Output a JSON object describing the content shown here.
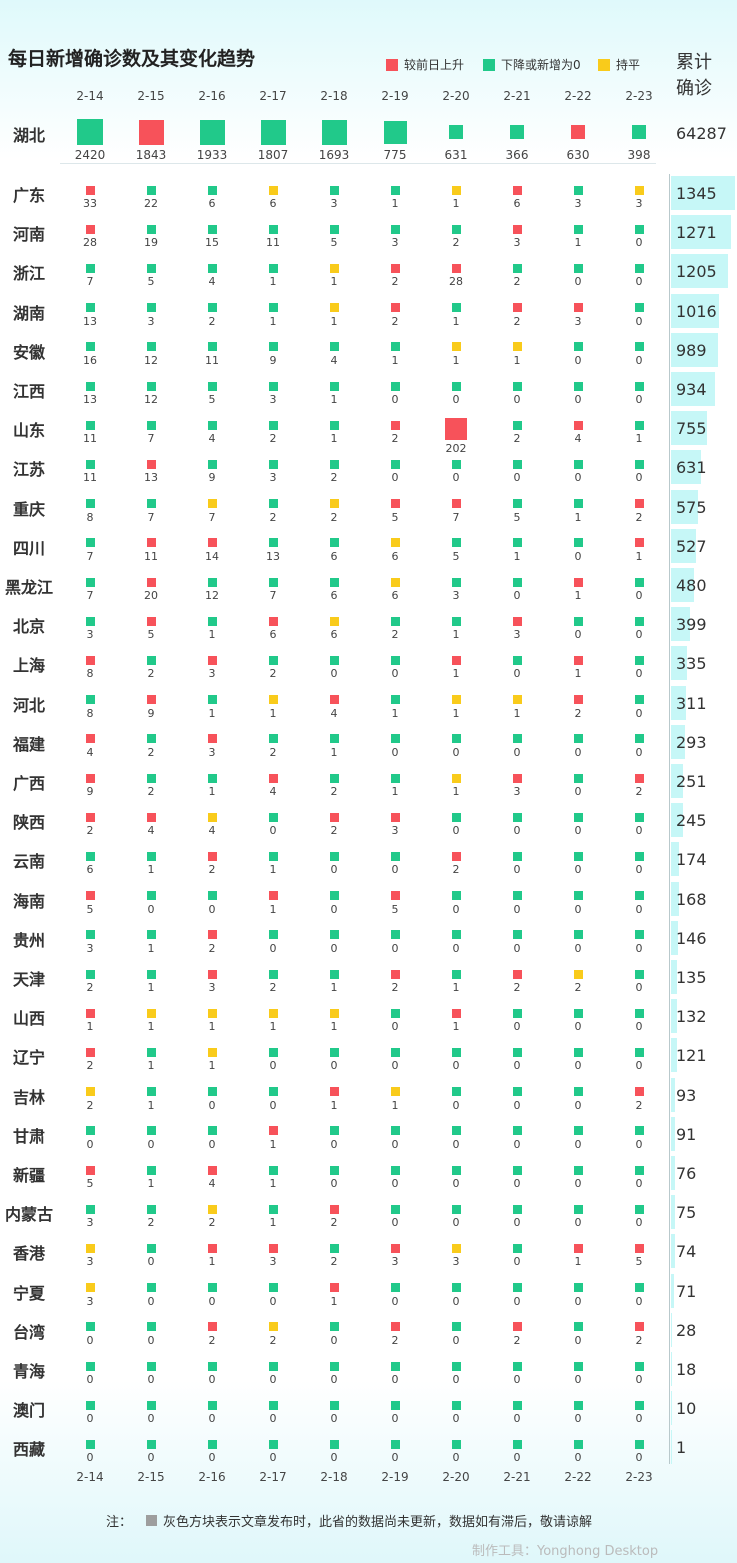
{
  "title": "每日新增确诊数及其变化趋势",
  "legend": [
    {
      "label": "较前日上升",
      "color": "#f7525a"
    },
    {
      "label": "下降或新增为0",
      "color": "#21c98a"
    },
    {
      "label": "持平",
      "color": "#f9cb1b"
    }
  ],
  "total_header": [
    "累计",
    "确诊"
  ],
  "note": {
    "prefix": "注：",
    "text": "灰色方块表示文章发布时，此省的数据尚未更新，数据如有滞后，敬请谅解"
  },
  "tool": "制作工具：Yonghong Desktop",
  "chart_data": {
    "type": "table",
    "dates": [
      "2-14",
      "2-15",
      "2-16",
      "2-17",
      "2-18",
      "2-19",
      "2-20",
      "2-21",
      "2-22",
      "2-23"
    ],
    "hubei": {
      "name": "湖北",
      "total": 64287,
      "values": [
        2420,
        1843,
        1933,
        1807,
        1693,
        775,
        631,
        366,
        630,
        398
      ],
      "trend": "GRGGGGGGRG"
    },
    "rows": [
      {
        "name": "广东",
        "total": 1345,
        "values": [
          33,
          22,
          6,
          6,
          3,
          1,
          1,
          6,
          3,
          3
        ],
        "trend": "RGGYGGYRGY"
      },
      {
        "name": "河南",
        "total": 1271,
        "values": [
          28,
          19,
          15,
          11,
          5,
          3,
          2,
          3,
          1,
          0
        ],
        "trend": "RGGGGGGRGG"
      },
      {
        "name": "浙江",
        "total": 1205,
        "values": [
          7,
          5,
          4,
          1,
          1,
          2,
          28,
          2,
          0,
          0
        ],
        "trend": "GGGGYRRGGG"
      },
      {
        "name": "湖南",
        "total": 1016,
        "values": [
          13,
          3,
          2,
          1,
          1,
          2,
          1,
          2,
          3,
          0
        ],
        "trend": "GGGGYRGRRG"
      },
      {
        "name": "安徽",
        "total": 989,
        "values": [
          16,
          12,
          11,
          9,
          4,
          1,
          1,
          1,
          0,
          0
        ],
        "trend": "GGGGGGYYGG"
      },
      {
        "name": "江西",
        "total": 934,
        "values": [
          13,
          12,
          5,
          3,
          1,
          0,
          0,
          0,
          0,
          0
        ],
        "trend": "GGGGGGGGGG"
      },
      {
        "name": "山东",
        "total": 755,
        "values": [
          11,
          7,
          4,
          2,
          1,
          2,
          202,
          2,
          4,
          1
        ],
        "trend": "GGGGGRRGRG"
      },
      {
        "name": "江苏",
        "total": 631,
        "values": [
          11,
          13,
          9,
          3,
          2,
          0,
          0,
          0,
          0,
          0
        ],
        "trend": "GRGGGGGGGG"
      },
      {
        "name": "重庆",
        "total": 575,
        "values": [
          8,
          7,
          7,
          2,
          2,
          5,
          7,
          5,
          1,
          2
        ],
        "trend": "GGYGYRRGGR"
      },
      {
        "name": "四川",
        "total": 527,
        "values": [
          7,
          11,
          14,
          13,
          6,
          6,
          5,
          1,
          0,
          1
        ],
        "trend": "GRRGGYGGGR"
      },
      {
        "name": "黑龙江",
        "total": 480,
        "values": [
          7,
          20,
          12,
          7,
          6,
          6,
          3,
          0,
          1,
          0
        ],
        "trend": "GRGGGYGGRG"
      },
      {
        "name": "北京",
        "total": 399,
        "values": [
          3,
          5,
          1,
          6,
          6,
          2,
          1,
          3,
          0,
          0
        ],
        "trend": "GRGRYGGRGG"
      },
      {
        "name": "上海",
        "total": 335,
        "values": [
          8,
          2,
          3,
          2,
          0,
          0,
          1,
          0,
          1,
          0
        ],
        "trend": "RGRGGGRGRG"
      },
      {
        "name": "河北",
        "total": 311,
        "values": [
          8,
          9,
          1,
          1,
          4,
          1,
          1,
          1,
          2,
          0
        ],
        "trend": "GRGYRGYYRG"
      },
      {
        "name": "福建",
        "total": 293,
        "values": [
          4,
          2,
          3,
          2,
          1,
          0,
          0,
          0,
          0,
          0
        ],
        "trend": "RGRGGGGGGG"
      },
      {
        "name": "广西",
        "total": 251,
        "values": [
          9,
          2,
          1,
          4,
          2,
          1,
          1,
          3,
          0,
          2
        ],
        "trend": "RGGRGGYRGR"
      },
      {
        "name": "陕西",
        "total": 245,
        "values": [
          2,
          4,
          4,
          0,
          2,
          3,
          0,
          0,
          0,
          0
        ],
        "trend": "RRYGRRGGGG"
      },
      {
        "name": "云南",
        "total": 174,
        "values": [
          6,
          1,
          2,
          1,
          0,
          0,
          2,
          0,
          0,
          0
        ],
        "trend": "GGRGGGRGGG"
      },
      {
        "name": "海南",
        "total": 168,
        "values": [
          5,
          0,
          0,
          1,
          0,
          5,
          0,
          0,
          0,
          0
        ],
        "trend": "RGGRGRGGGG"
      },
      {
        "name": "贵州",
        "total": 146,
        "values": [
          3,
          1,
          2,
          0,
          0,
          0,
          0,
          0,
          0,
          0
        ],
        "trend": "GGRGGGGGGG"
      },
      {
        "name": "天津",
        "total": 135,
        "values": [
          2,
          1,
          3,
          2,
          1,
          2,
          1,
          2,
          2,
          0
        ],
        "trend": "GGRGGRGRYG"
      },
      {
        "name": "山西",
        "total": 132,
        "values": [
          1,
          1,
          1,
          1,
          1,
          0,
          1,
          0,
          0,
          0
        ],
        "trend": "RYYYYGRGGG"
      },
      {
        "name": "辽宁",
        "total": 121,
        "values": [
          2,
          1,
          1,
          0,
          0,
          0,
          0,
          0,
          0,
          0
        ],
        "trend": "RGYGGGGGGG"
      },
      {
        "name": "吉林",
        "total": 93,
        "values": [
          2,
          1,
          0,
          0,
          1,
          1,
          0,
          0,
          0,
          2
        ],
        "trend": "YGGGRYGGGR"
      },
      {
        "name": "甘肃",
        "total": 91,
        "values": [
          0,
          0,
          0,
          1,
          0,
          0,
          0,
          0,
          0,
          0
        ],
        "trend": "GGGRGGGGGG"
      },
      {
        "name": "新疆",
        "total": 76,
        "values": [
          5,
          1,
          4,
          1,
          0,
          0,
          0,
          0,
          0,
          0
        ],
        "trend": "RGRGGGGGGG"
      },
      {
        "name": "内蒙古",
        "total": 75,
        "values": [
          3,
          2,
          2,
          1,
          2,
          0,
          0,
          0,
          0,
          0
        ],
        "trend": "GGYGRGGGGG"
      },
      {
        "name": "香港",
        "total": 74,
        "values": [
          3,
          0,
          1,
          3,
          2,
          3,
          3,
          0,
          1,
          5
        ],
        "trend": "YGRRGRYGRR"
      },
      {
        "name": "宁夏",
        "total": 71,
        "values": [
          3,
          0,
          0,
          0,
          1,
          0,
          0,
          0,
          0,
          0
        ],
        "trend": "YGGGRGGGGG"
      },
      {
        "name": "台湾",
        "total": 28,
        "values": [
          0,
          0,
          2,
          2,
          0,
          2,
          0,
          2,
          0,
          2
        ],
        "trend": "GGRYGRGRGR"
      },
      {
        "name": "青海",
        "total": 18,
        "values": [
          0,
          0,
          0,
          0,
          0,
          0,
          0,
          0,
          0,
          0
        ],
        "trend": "GGGGGGGGGG"
      },
      {
        "name": "澳门",
        "total": 10,
        "values": [
          0,
          0,
          0,
          0,
          0,
          0,
          0,
          0,
          0,
          0
        ],
        "trend": "GGGGGGGGGG"
      },
      {
        "name": "西藏",
        "total": 1,
        "values": [
          0,
          0,
          0,
          0,
          0,
          0,
          0,
          0,
          0,
          0
        ],
        "trend": "GGGGGGGGGG"
      }
    ]
  }
}
